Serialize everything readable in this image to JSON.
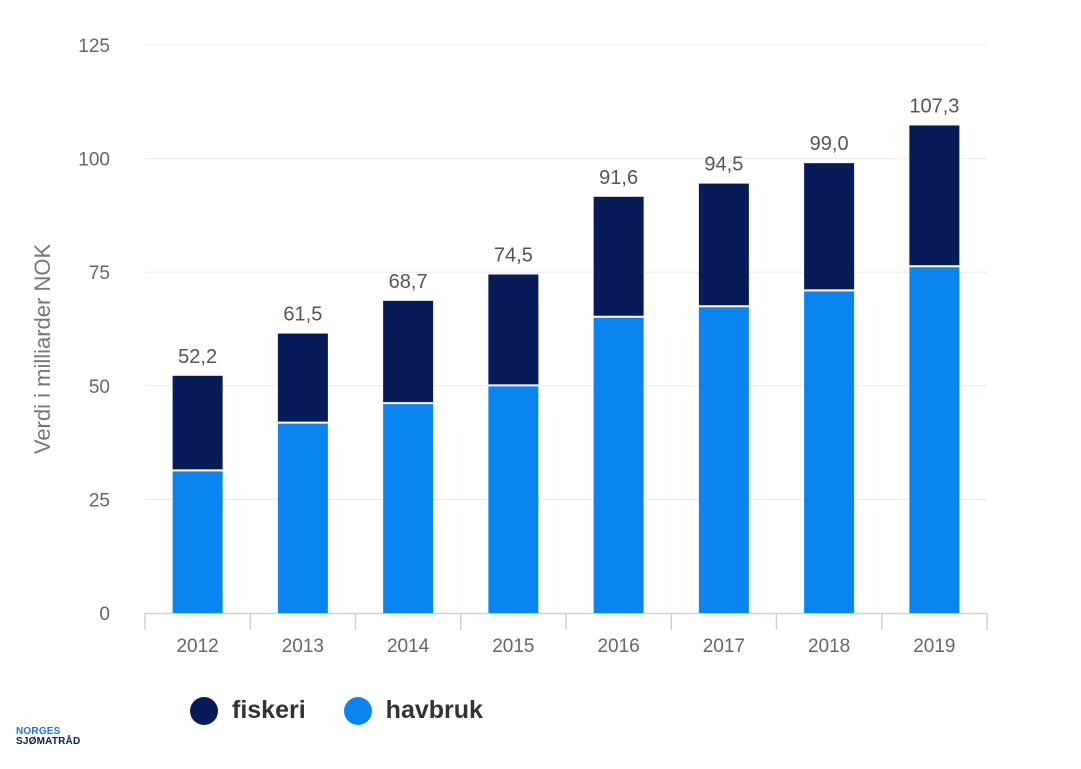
{
  "chart_data": {
    "type": "bar",
    "stacked": true,
    "categories": [
      "2012",
      "2013",
      "2014",
      "2015",
      "2016",
      "2017",
      "2018",
      "2019"
    ],
    "series": [
      {
        "name": "havbruk",
        "color": "#0a84ee",
        "values": [
          31.4,
          41.9,
          46.2,
          50.1,
          65.2,
          67.5,
          71.0,
          76.3
        ]
      },
      {
        "name": "fiskeri",
        "color": "#061b57",
        "values": [
          20.8,
          19.6,
          22.5,
          24.4,
          26.4,
          27.0,
          28.0,
          31.0
        ]
      }
    ],
    "totals": [
      "52,2",
      "61,5",
      "68,7",
      "74,5",
      "91,6",
      "94,5",
      "99,0",
      "107,3"
    ],
    "total_values": [
      52.2,
      61.5,
      68.7,
      74.5,
      91.6,
      94.5,
      99.0,
      107.3
    ],
    "yticks": [
      0,
      25,
      50,
      75,
      100,
      125
    ],
    "ylim": [
      0,
      125
    ],
    "ylabel": "Verdi i milliarder NOK",
    "xlabel": "",
    "title": "",
    "grid": true,
    "legend_position": "bottom-left"
  },
  "legend": [
    {
      "name": "fiskeri",
      "color": "#061b57"
    },
    {
      "name": "havbruk",
      "color": "#0a84ee"
    }
  ],
  "logo": {
    "line1": "NORGES",
    "line2": "SJØMATRÅD"
  }
}
